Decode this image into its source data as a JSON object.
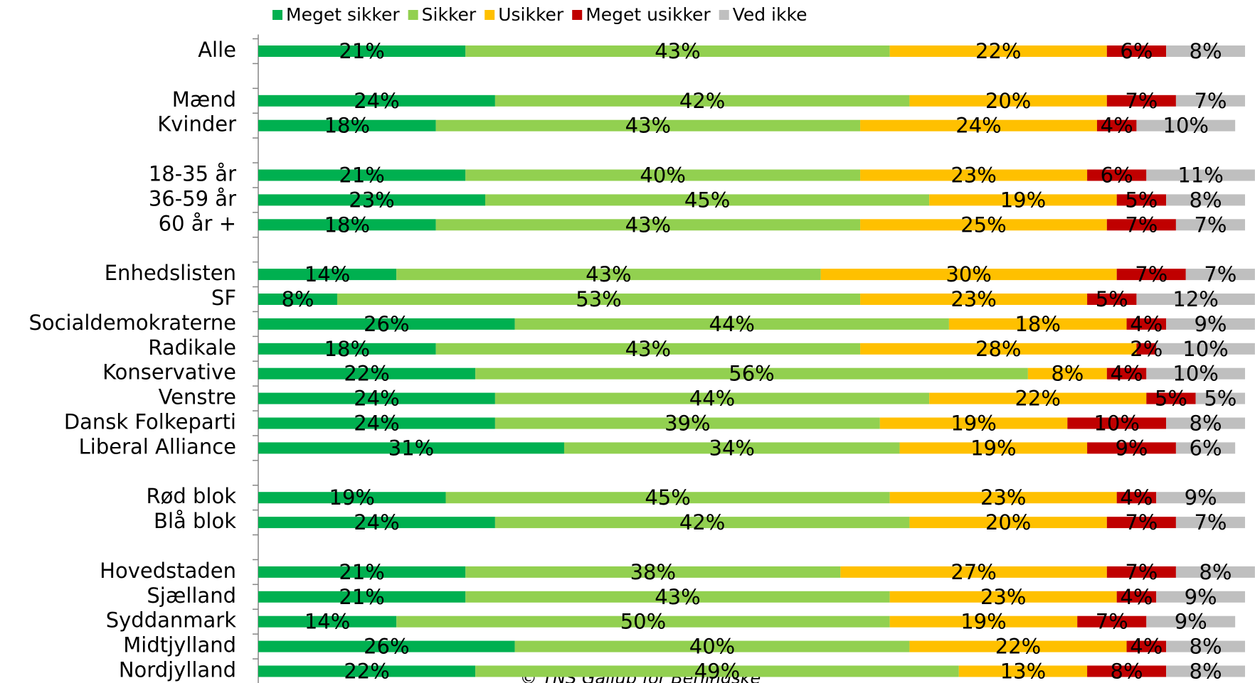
{
  "chart_data": {
    "type": "stacked_bar_horizontal",
    "categories": [
      "Alle",
      null,
      "Mænd",
      "Kvinder",
      null,
      "18-35 år",
      "36-59 år",
      "60 år +",
      null,
      "Enhedslisten",
      "SF",
      "Socialdemokraterne",
      "Radikale",
      "Konservative",
      "Venstre",
      "Dansk Folkeparti",
      "Liberal Alliance",
      null,
      "Rød blok",
      "Blå blok",
      null,
      "Hovedstaden",
      "Sjælland",
      "Syddanmark",
      "Midtjylland",
      "Nordjylland"
    ],
    "series": [
      {
        "name": "Meget sikker",
        "color": "#00b050",
        "values": [
          21,
          null,
          24,
          18,
          null,
          21,
          23,
          18,
          null,
          14,
          8,
          26,
          18,
          22,
          24,
          24,
          31,
          null,
          19,
          24,
          null,
          21,
          21,
          14,
          26,
          22
        ],
        "value_labels": [
          "21%",
          null,
          "24%",
          "18%",
          null,
          "21%",
          "23%",
          "18%",
          null,
          "14%",
          "8%",
          "26%",
          "18%",
          "22%",
          "24%",
          "24%",
          "31%",
          null,
          "19%",
          "24%",
          null,
          "21%",
          "21%",
          "14%",
          "26%",
          "22%"
        ]
      },
      {
        "name": "Sikker",
        "color": "#92d050",
        "values": [
          43,
          null,
          42,
          43,
          null,
          40,
          45,
          43,
          null,
          43,
          53,
          44,
          43,
          56,
          44,
          39,
          34,
          null,
          45,
          42,
          null,
          38,
          43,
          50,
          40,
          49
        ],
        "value_labels": [
          "43%",
          null,
          "42%",
          "43%",
          null,
          "40%",
          "45%",
          "43%",
          null,
          "43%",
          "53%",
          "44%",
          "43%",
          "56%",
          "44%",
          "39%",
          "34%",
          null,
          "45%",
          "42%",
          null,
          "38%",
          "43%",
          "50%",
          "40%",
          "49%"
        ]
      },
      {
        "name": "Usikker",
        "color": "#ffc000",
        "values": [
          22,
          null,
          20,
          24,
          null,
          23,
          19,
          25,
          null,
          30,
          23,
          18,
          28,
          8,
          22,
          19,
          19,
          null,
          23,
          20,
          null,
          27,
          23,
          19,
          22,
          13
        ],
        "value_labels": [
          "22%",
          null,
          "20%",
          "24%",
          null,
          "23%",
          "19%",
          "25%",
          null,
          "30%",
          "23%",
          "18%",
          "28%",
          "8%",
          "22%",
          "19%",
          "19%",
          null,
          "23%",
          "20%",
          null,
          "27%",
          "23%",
          "19%",
          "22%",
          "13%"
        ]
      },
      {
        "name": "Meget usikker",
        "color": "#c00000",
        "values": [
          6,
          null,
          7,
          4,
          null,
          6,
          5,
          7,
          null,
          7,
          5,
          4,
          2,
          4,
          5,
          10,
          9,
          null,
          4,
          7,
          null,
          7,
          4,
          7,
          4,
          8
        ],
        "value_labels": [
          "6%",
          null,
          "7%",
          "4%",
          null,
          "6%",
          "5%",
          "7%",
          null,
          "7%",
          "5%",
          "4%",
          "2%",
          "4%",
          "5%",
          "10%",
          "9%",
          null,
          "4%",
          "7%",
          null,
          "7%",
          "4%",
          "7%",
          "4%",
          "8%"
        ]
      },
      {
        "name": "Ved ikke",
        "color": "#bfbfbf",
        "values": [
          8,
          null,
          7,
          10,
          null,
          11,
          8,
          7,
          null,
          7,
          12,
          9,
          10,
          10,
          5,
          8,
          6,
          null,
          9,
          7,
          null,
          8,
          9,
          9,
          8,
          8
        ],
        "value_labels": [
          "8%",
          null,
          "7%",
          "10%",
          null,
          "11%",
          "8%",
          "7%",
          null,
          "7%",
          "12%",
          "9%",
          "10%",
          "10%",
          "5%",
          "8%",
          "6%",
          null,
          "9%",
          "7%",
          null,
          "8%",
          "9%",
          "9%",
          "8%",
          "8%"
        ]
      }
    ],
    "xlim": [
      0,
      100
    ],
    "source": "© TNS Gallup for Berlingske"
  }
}
